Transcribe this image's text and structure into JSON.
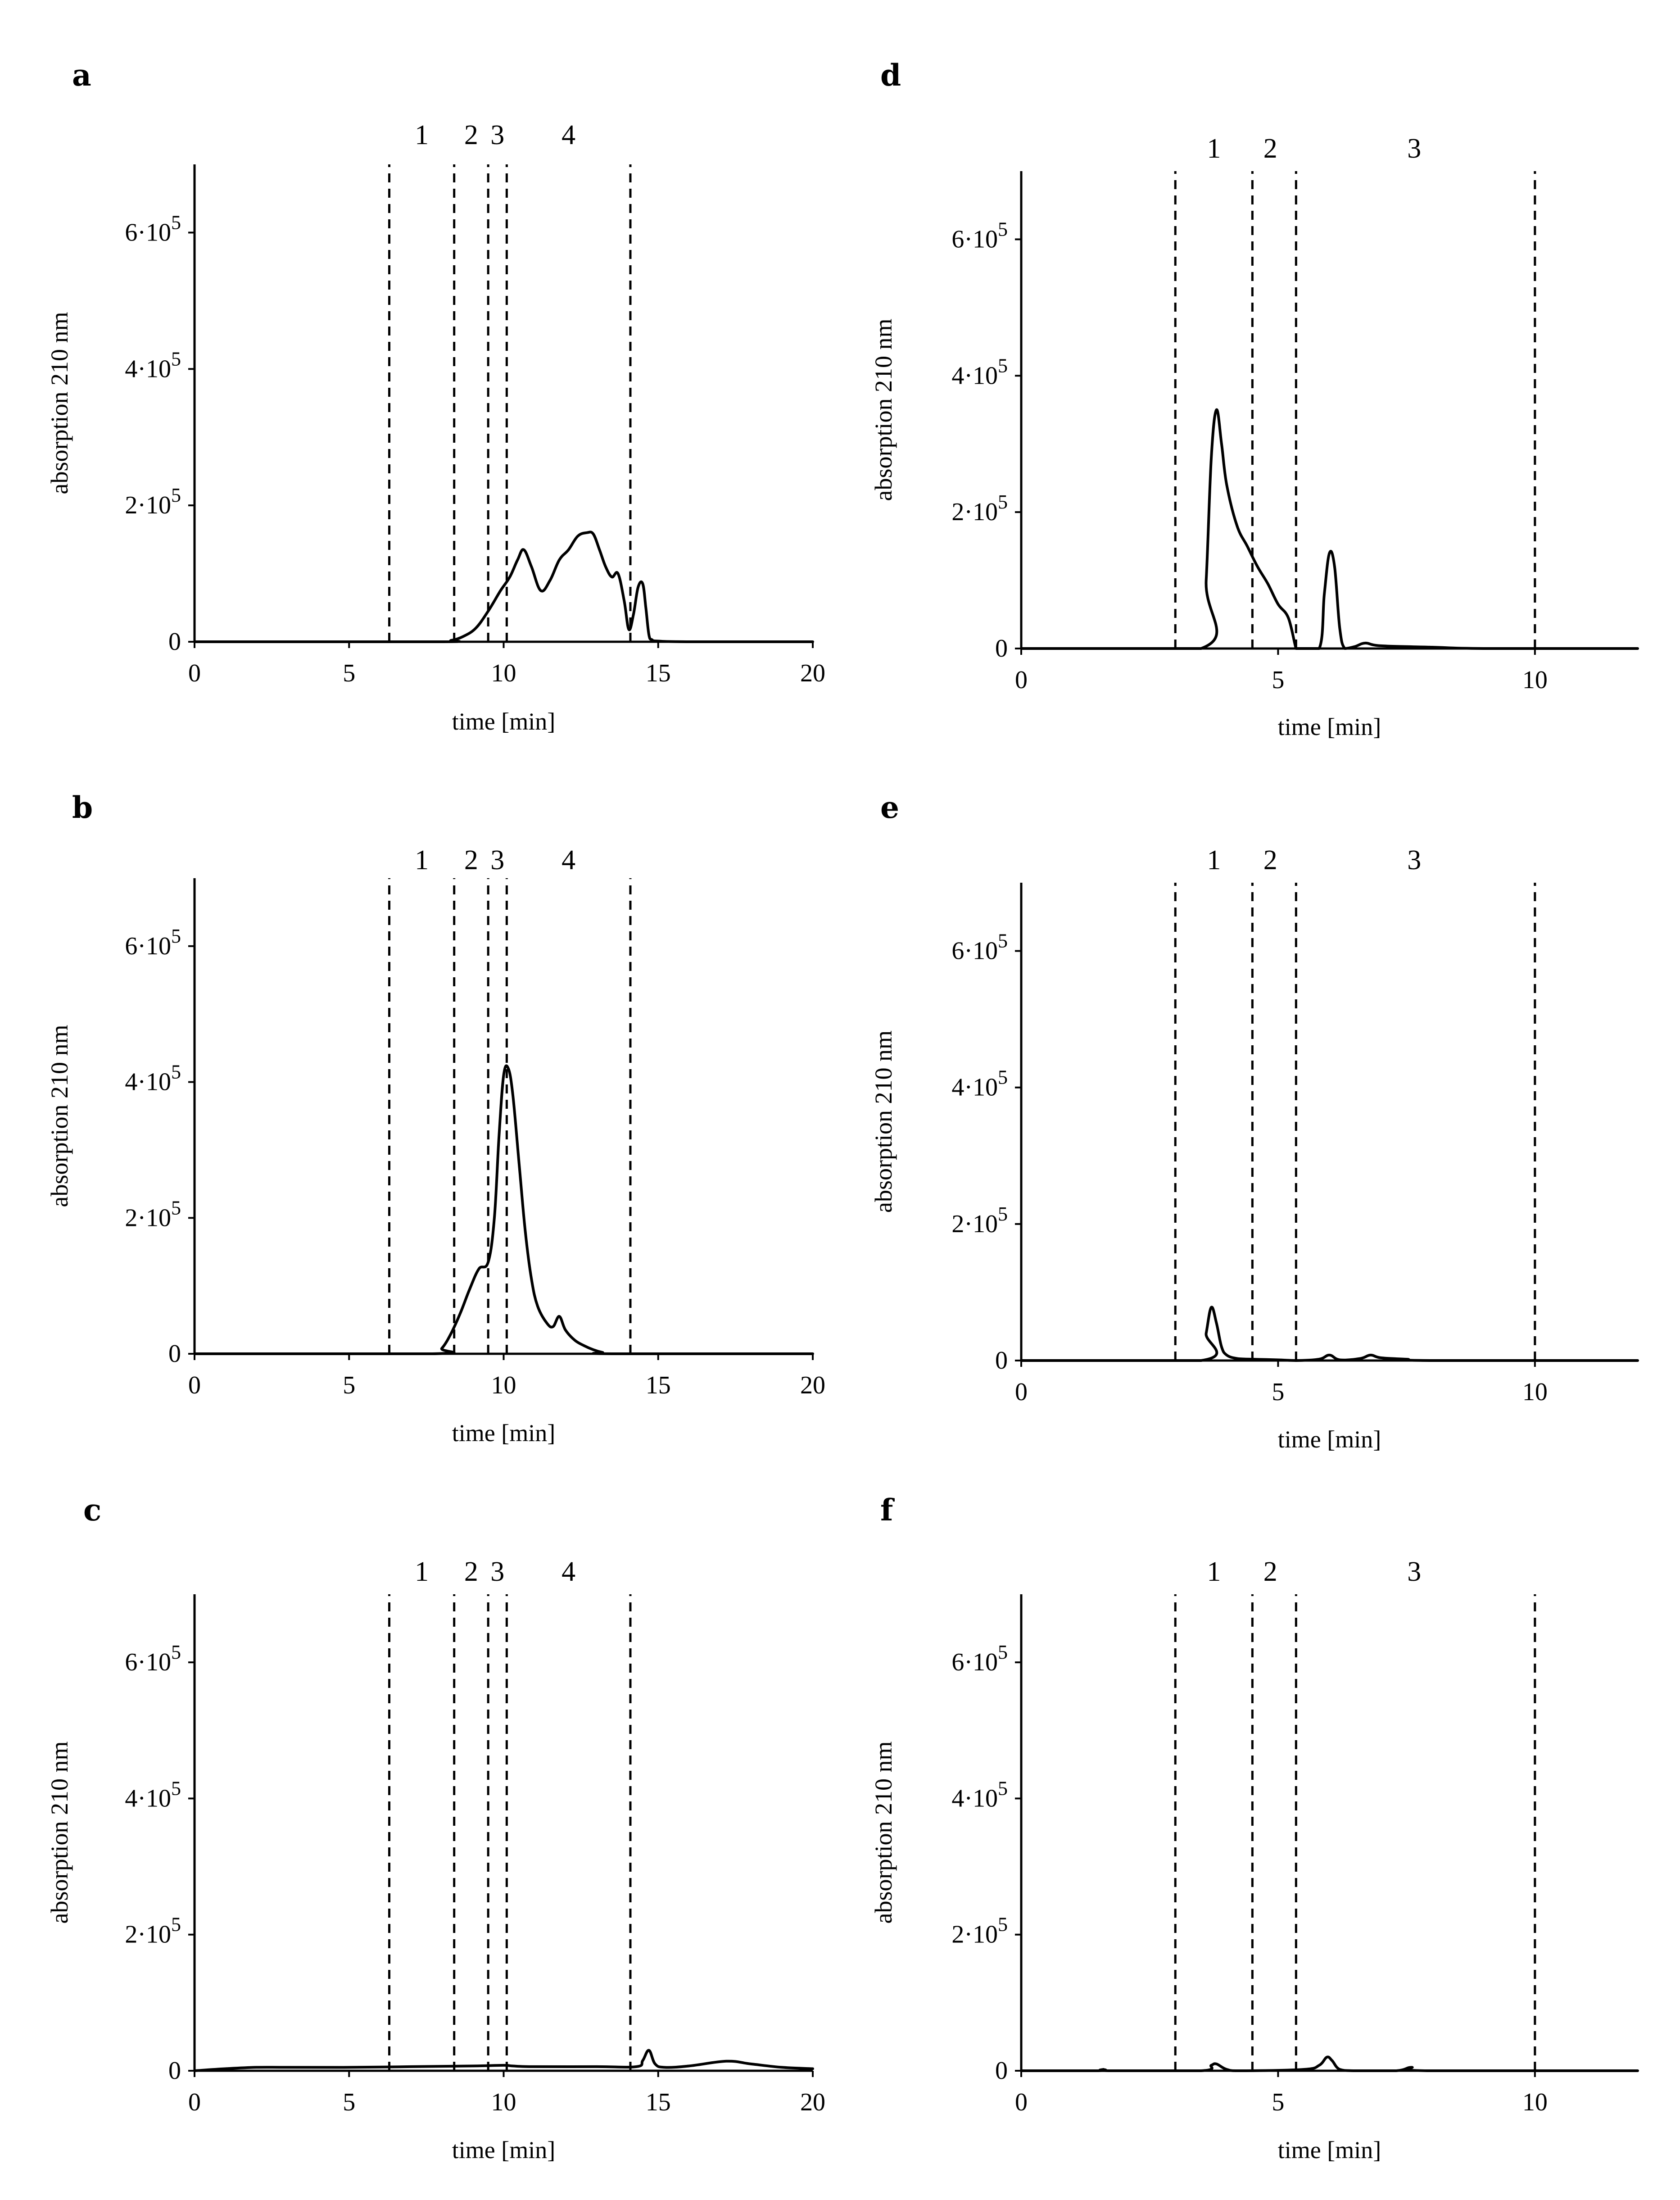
{
  "chart_data": [
    {
      "panel": "a",
      "type": "line",
      "xlabel": "time [min]",
      "ylabel": "absorption 210 nm",
      "xlim": [
        0,
        20
      ],
      "ylim": [
        0,
        700000
      ],
      "xticks": [
        0,
        5,
        10,
        15,
        20
      ],
      "xtick_labels": [
        "0",
        "5",
        "10",
        "15",
        "20"
      ],
      "yticks": [
        0,
        200000,
        400000,
        600000
      ],
      "ytick_labels": [
        [
          "0",
          ""
        ],
        [
          "2·10",
          "5"
        ],
        [
          "4·10",
          "5"
        ],
        [
          "6·10",
          "5"
        ]
      ],
      "dividers": [
        6.3,
        8.4,
        9.5,
        10.1,
        14.1
      ],
      "fraction_labels": [
        {
          "text": "1",
          "x": 7.35
        },
        {
          "text": "2",
          "x": 8.95
        },
        {
          "text": "3",
          "x": 9.8
        },
        {
          "text": "4",
          "x": 12.1
        }
      ],
      "series": [
        {
          "name": "chromatogram",
          "x": [
            0,
            7.8,
            8.3,
            8.7,
            9.1,
            9.5,
            9.9,
            10.2,
            10.45,
            10.65,
            10.9,
            11.2,
            11.5,
            11.8,
            12.1,
            12.4,
            12.7,
            12.9,
            13.1,
            13.3,
            13.5,
            13.7,
            13.9,
            14.05,
            14.2,
            14.35,
            14.5,
            14.6,
            14.7,
            14.8,
            15.0,
            16,
            20
          ],
          "values": [
            0,
            0,
            2000,
            8000,
            20000,
            45000,
            75000,
            95000,
            120000,
            135000,
            110000,
            75000,
            90000,
            120000,
            135000,
            155000,
            160000,
            158000,
            135000,
            110000,
            95000,
            100000,
            60000,
            18000,
            40000,
            80000,
            85000,
            50000,
            10000,
            3000,
            1000,
            0,
            0
          ]
        }
      ]
    },
    {
      "panel": "b",
      "type": "line",
      "xlabel": "time [min]",
      "ylabel": "absorption 210 nm",
      "xlim": [
        0,
        20
      ],
      "ylim": [
        0,
        700000
      ],
      "xticks": [
        0,
        5,
        10,
        15,
        20
      ],
      "xtick_labels": [
        "0",
        "5",
        "10",
        "15",
        "20"
      ],
      "yticks": [
        0,
        200000,
        400000,
        600000
      ],
      "ytick_labels": [
        [
          "0",
          ""
        ],
        [
          "2·10",
          "5"
        ],
        [
          "4·10",
          "5"
        ],
        [
          "6·10",
          "5"
        ]
      ],
      "dividers": [
        6.3,
        8.4,
        9.5,
        10.1,
        14.1
      ],
      "fraction_labels": [
        {
          "text": "1",
          "x": 7.35
        },
        {
          "text": "2",
          "x": 8.95
        },
        {
          "text": "3",
          "x": 9.8
        },
        {
          "text": "4",
          "x": 12.1
        }
      ],
      "series": [
        {
          "name": "chromatogram",
          "x": [
            0,
            7.7,
            8.0,
            8.3,
            8.6,
            8.9,
            9.2,
            9.5,
            9.7,
            9.85,
            10.0,
            10.15,
            10.3,
            10.5,
            10.7,
            10.9,
            11.1,
            11.4,
            11.6,
            11.8,
            12.0,
            12.3,
            12.6,
            12.9,
            13.2,
            13.5,
            20
          ],
          "values": [
            0,
            0,
            8000,
            30000,
            60000,
            95000,
            125000,
            135000,
            200000,
            320000,
            410000,
            420000,
            380000,
            280000,
            180000,
            110000,
            70000,
            45000,
            40000,
            55000,
            35000,
            20000,
            12000,
            6000,
            2000,
            0,
            0
          ]
        }
      ]
    },
    {
      "panel": "c",
      "type": "line",
      "xlabel": "time [min]",
      "ylabel": "absorption 210 nm",
      "xlim": [
        0,
        20
      ],
      "ylim": [
        0,
        700000
      ],
      "xticks": [
        0,
        5,
        10,
        15,
        20
      ],
      "xtick_labels": [
        "0",
        "5",
        "10",
        "15",
        "20"
      ],
      "yticks": [
        0,
        200000,
        400000,
        600000
      ],
      "ytick_labels": [
        [
          "0",
          ""
        ],
        [
          "2·10",
          "5"
        ],
        [
          "4·10",
          "5"
        ],
        [
          "6·10",
          "5"
        ]
      ],
      "dividers": [
        6.3,
        8.4,
        9.5,
        10.1,
        14.1
      ],
      "fraction_labels": [
        {
          "text": "1",
          "x": 7.35
        },
        {
          "text": "2",
          "x": 8.95
        },
        {
          "text": "3",
          "x": 9.8
        },
        {
          "text": "4",
          "x": 12.1
        }
      ],
      "series": [
        {
          "name": "chromatogram",
          "x": [
            0,
            1,
            2,
            3,
            5,
            7,
            9,
            10,
            10.3,
            11,
            13,
            14.3,
            14.5,
            14.7,
            14.9,
            15.2,
            16,
            17.2,
            18,
            19,
            20
          ],
          "values": [
            0,
            3000,
            5000,
            5000,
            5000,
            6000,
            7000,
            8000,
            7000,
            6000,
            6000,
            6000,
            15000,
            30000,
            10000,
            5000,
            7000,
            14000,
            10000,
            5000,
            3000
          ]
        }
      ]
    },
    {
      "panel": "d",
      "type": "line",
      "xlabel": "time [min]",
      "ylabel": "absorption 210 nm",
      "xlim": [
        0,
        12
      ],
      "ylim": [
        0,
        700000
      ],
      "xticks": [
        0,
        5,
        10
      ],
      "xtick_labels": [
        "0",
        "5",
        "10"
      ],
      "yticks": [
        0,
        200000,
        400000,
        600000
      ],
      "ytick_labels": [
        [
          "0",
          ""
        ],
        [
          "2·10",
          "5"
        ],
        [
          "4·10",
          "5"
        ],
        [
          "6·10",
          "5"
        ]
      ],
      "dividers": [
        3.0,
        4.5,
        5.35,
        10.0
      ],
      "fraction_labels": [
        {
          "text": "1",
          "x": 3.75
        },
        {
          "text": "2",
          "x": 4.85
        },
        {
          "text": "3",
          "x": 7.65
        }
      ],
      "series": [
        {
          "name": "chromatogram",
          "x": [
            0,
            3.5,
            3.6,
            3.7,
            3.8,
            3.9,
            4.0,
            4.2,
            4.4,
            4.6,
            4.8,
            5.0,
            5.2,
            5.35,
            5.4,
            5.8,
            5.9,
            6.0,
            6.1,
            6.2,
            6.3,
            6.5,
            6.7,
            7,
            8,
            9,
            12
          ],
          "values": [
            0,
            0,
            100000,
            280000,
            350000,
            300000,
            240000,
            180000,
            150000,
            120000,
            95000,
            65000,
            45000,
            0,
            0,
            0,
            80000,
            140000,
            120000,
            30000,
            0,
            3000,
            8000,
            4000,
            2000,
            0,
            0
          ]
        }
      ]
    },
    {
      "panel": "e",
      "type": "line",
      "xlabel": "time [min]",
      "ylabel": "absorption 210 nm",
      "xlim": [
        0,
        12
      ],
      "ylim": [
        0,
        700000
      ],
      "xticks": [
        0,
        5,
        10
      ],
      "xtick_labels": [
        "0",
        "5",
        "10"
      ],
      "yticks": [
        0,
        200000,
        400000,
        600000
      ],
      "ytick_labels": [
        [
          "0",
          ""
        ],
        [
          "2·10",
          "5"
        ],
        [
          "4·10",
          "5"
        ],
        [
          "6·10",
          "5"
        ]
      ],
      "dividers": [
        3.0,
        4.5,
        5.35,
        10.0
      ],
      "fraction_labels": [
        {
          "text": "1",
          "x": 3.75
        },
        {
          "text": "2",
          "x": 4.85
        },
        {
          "text": "3",
          "x": 7.65
        }
      ],
      "series": [
        {
          "name": "chromatogram",
          "x": [
            0,
            3.5,
            3.6,
            3.7,
            3.8,
            3.9,
            4.0,
            4.2,
            4.5,
            5.0,
            5.35,
            5.8,
            6.0,
            6.2,
            6.6,
            6.8,
            7.0,
            7.5,
            8,
            12
          ],
          "values": [
            0,
            0,
            40000,
            78000,
            55000,
            20000,
            8000,
            3000,
            2000,
            1000,
            0,
            2000,
            8000,
            1000,
            3000,
            8000,
            4000,
            2000,
            0,
            0
          ]
        }
      ]
    },
    {
      "panel": "f",
      "type": "line",
      "xlabel": "time [min]",
      "ylabel": "absorption 210 nm",
      "xlim": [
        0,
        12
      ],
      "ylim": [
        0,
        700000
      ],
      "xticks": [
        0,
        5,
        10
      ],
      "xtick_labels": [
        "0",
        "5",
        "10"
      ],
      "yticks": [
        0,
        200000,
        400000,
        600000
      ],
      "ytick_labels": [
        [
          "0",
          ""
        ],
        [
          "2·10",
          "5"
        ],
        [
          "4·10",
          "5"
        ],
        [
          "6·10",
          "5"
        ]
      ],
      "dividers": [
        3.0,
        4.5,
        5.35,
        10.0
      ],
      "fraction_labels": [
        {
          "text": "1",
          "x": 3.75
        },
        {
          "text": "2",
          "x": 4.85
        },
        {
          "text": "3",
          "x": 7.65
        }
      ],
      "series": [
        {
          "name": "chromatogram",
          "x": [
            0,
            1.5,
            1.6,
            1.7,
            3.5,
            3.7,
            3.8,
            4.0,
            4.3,
            5.5,
            5.8,
            5.95,
            6.05,
            6.2,
            6.5,
            7.3,
            7.6,
            7.9,
            12
          ],
          "values": [
            0,
            0,
            2000,
            0,
            0,
            8000,
            10000,
            2000,
            0,
            2000,
            8000,
            20000,
            15000,
            2000,
            0,
            0,
            5000,
            0,
            0
          ]
        }
      ]
    }
  ]
}
